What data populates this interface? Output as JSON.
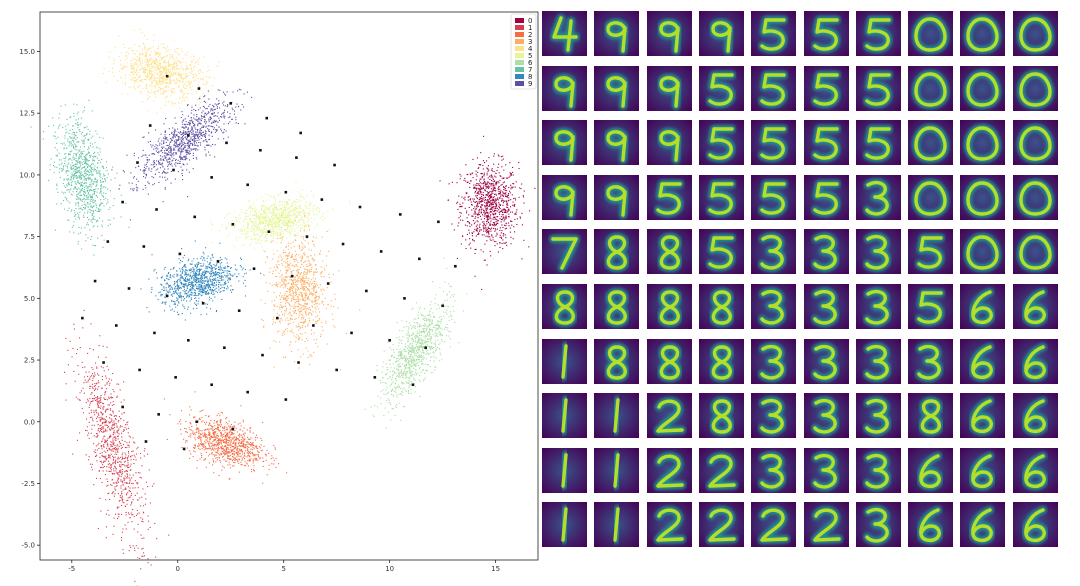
{
  "chart_data": [
    {
      "type": "scatter",
      "xlim": [
        -6.5,
        17
      ],
      "ylim": [
        -5.6,
        16.6
      ],
      "x_ticks": [
        -5,
        0,
        5,
        10,
        15
      ],
      "y_ticks": [
        -5.0,
        -2.5,
        0.0,
        2.5,
        5.0,
        7.5,
        10.0,
        12.5,
        15.0
      ],
      "x_tick_labels": [
        "-5",
        "0",
        "5",
        "10",
        "15"
      ],
      "y_tick_labels": [
        "-5.0",
        "-2.5",
        "0.0",
        "2.5",
        "5.0",
        "7.5",
        "10.0",
        "12.5",
        "15.0"
      ],
      "grid": false,
      "legend_position": "top-right",
      "legend": [
        "0",
        "1",
        "2",
        "3",
        "4",
        "5",
        "6",
        "7",
        "8",
        "9"
      ],
      "colors": [
        "#9e0142",
        "#d53e4f",
        "#f46d43",
        "#fdae61",
        "#fee08b",
        "#e6f598",
        "#abdda4",
        "#66c2a5",
        "#3288bd",
        "#5e4fa2"
      ],
      "clusters": [
        {
          "label": "0",
          "center": [
            14.7,
            8.8
          ],
          "spread": [
            1.35,
            1.7
          ],
          "angle": 0
        },
        {
          "label": "1",
          "center": [
            -3.1,
            -1.0
          ],
          "spread": [
            1.0,
            3.9
          ],
          "angle": 18
        },
        {
          "label": "2",
          "center": [
            2.2,
            -0.8
          ],
          "spread": [
            1.9,
            0.9
          ],
          "angle": -15
        },
        {
          "label": "3",
          "center": [
            5.7,
            5.3
          ],
          "spread": [
            1.3,
            2.2
          ],
          "angle": 5
        },
        {
          "label": "4",
          "center": [
            -0.8,
            14.2
          ],
          "spread": [
            2.1,
            1.0
          ],
          "angle": -10
        },
        {
          "label": "5",
          "center": [
            4.6,
            8.2
          ],
          "spread": [
            2.0,
            0.8
          ],
          "angle": 10
        },
        {
          "label": "6",
          "center": [
            11.2,
            2.9
          ],
          "spread": [
            0.9,
            2.4
          ],
          "angle": -35
        },
        {
          "label": "7",
          "center": [
            -4.5,
            10.0
          ],
          "spread": [
            1.1,
            2.4
          ],
          "angle": 15
        },
        {
          "label": "8",
          "center": [
            0.9,
            5.7
          ],
          "spread": [
            1.8,
            0.9
          ],
          "angle": 15
        },
        {
          "label": "9",
          "center": [
            0.3,
            11.4
          ],
          "spread": [
            0.9,
            2.6
          ],
          "angle": -55
        }
      ],
      "grid_markers": [
        [
          -0.5,
          14.0
        ],
        [
          1.0,
          13.5
        ],
        [
          2.5,
          12.9
        ],
        [
          4.2,
          12.3
        ],
        [
          5.8,
          11.7
        ],
        [
          -1.3,
          12.0
        ],
        [
          0.5,
          11.6
        ],
        [
          2.3,
          11.3
        ],
        [
          3.9,
          11.0
        ],
        [
          5.6,
          10.7
        ],
        [
          7.4,
          10.4
        ],
        [
          -1.9,
          10.5
        ],
        [
          -0.2,
          10.2
        ],
        [
          1.6,
          9.9
        ],
        [
          3.3,
          9.6
        ],
        [
          5.1,
          9.3
        ],
        [
          6.8,
          9.0
        ],
        [
          8.6,
          8.7
        ],
        [
          10.5,
          8.4
        ],
        [
          12.3,
          8.1
        ],
        [
          -2.6,
          8.9
        ],
        [
          -1.0,
          8.6
        ],
        [
          0.8,
          8.3
        ],
        [
          2.6,
          8.0
        ],
        [
          4.3,
          7.7
        ],
        [
          6.1,
          7.5
        ],
        [
          7.8,
          7.2
        ],
        [
          9.6,
          6.9
        ],
        [
          11.4,
          6.6
        ],
        [
          13.1,
          6.3
        ],
        [
          -3.3,
          7.3
        ],
        [
          -1.6,
          7.1
        ],
        [
          0.1,
          6.8
        ],
        [
          1.9,
          6.5
        ],
        [
          3.6,
          6.2
        ],
        [
          5.4,
          5.9
        ],
        [
          7.1,
          5.6
        ],
        [
          8.9,
          5.3
        ],
        [
          10.7,
          5.0
        ],
        [
          12.5,
          4.7
        ],
        [
          -3.9,
          5.7
        ],
        [
          -2.3,
          5.4
        ],
        [
          -0.5,
          5.1
        ],
        [
          1.2,
          4.8
        ],
        [
          2.9,
          4.5
        ],
        [
          4.7,
          4.2
        ],
        [
          6.4,
          3.9
        ],
        [
          8.2,
          3.6
        ],
        [
          10.0,
          3.3
        ],
        [
          11.7,
          3.0
        ],
        [
          -4.5,
          4.2
        ],
        [
          -2.9,
          3.9
        ],
        [
          -1.1,
          3.6
        ],
        [
          0.5,
          3.3
        ],
        [
          2.2,
          3.0
        ],
        [
          4.0,
          2.7
        ],
        [
          5.7,
          2.4
        ],
        [
          7.5,
          2.1
        ],
        [
          9.3,
          1.8
        ],
        [
          11.1,
          1.5
        ],
        [
          -3.5,
          2.4
        ],
        [
          -1.8,
          2.1
        ],
        [
          -0.1,
          1.8
        ],
        [
          1.6,
          1.5
        ],
        [
          3.3,
          1.2
        ],
        [
          5.1,
          0.9
        ],
        [
          -2.6,
          0.6
        ],
        [
          -0.9,
          0.3
        ],
        [
          0.9,
          0.0
        ],
        [
          2.6,
          -0.3
        ],
        [
          -1.5,
          -0.8
        ],
        [
          0.3,
          -1.1
        ]
      ]
    },
    {
      "type": "heatmap",
      "rows": 10,
      "cols": 10,
      "cmap": "viridis",
      "digits": [
        [
          "4",
          "9",
          "9",
          "9",
          "5",
          "5",
          "5",
          "0",
          "0",
          "0"
        ],
        [
          "9",
          "9",
          "9",
          "5",
          "5",
          "5",
          "5",
          "0",
          "0",
          "0"
        ],
        [
          "9",
          "9",
          "9",
          "5",
          "5",
          "5",
          "5",
          "0",
          "0",
          "0"
        ],
        [
          "9",
          "9",
          "5",
          "5",
          "5",
          "5",
          "3",
          "0",
          "0",
          "0"
        ],
        [
          "7",
          "8",
          "8",
          "5",
          "3",
          "3",
          "3",
          "5",
          "0",
          "0"
        ],
        [
          "8",
          "8",
          "8",
          "8",
          "3",
          "3",
          "3",
          "5",
          "6",
          "6"
        ],
        [
          "1",
          "8",
          "8",
          "8",
          "3",
          "3",
          "3",
          "3",
          "6",
          "6"
        ],
        [
          "1",
          "1",
          "2",
          "8",
          "3",
          "3",
          "3",
          "8",
          "6",
          "6"
        ],
        [
          "1",
          "1",
          "2",
          "2",
          "3",
          "3",
          "3",
          "6",
          "6",
          "6"
        ],
        [
          "1",
          "1",
          "2",
          "2",
          "2",
          "2",
          "3",
          "6",
          "6",
          "6"
        ]
      ]
    }
  ]
}
